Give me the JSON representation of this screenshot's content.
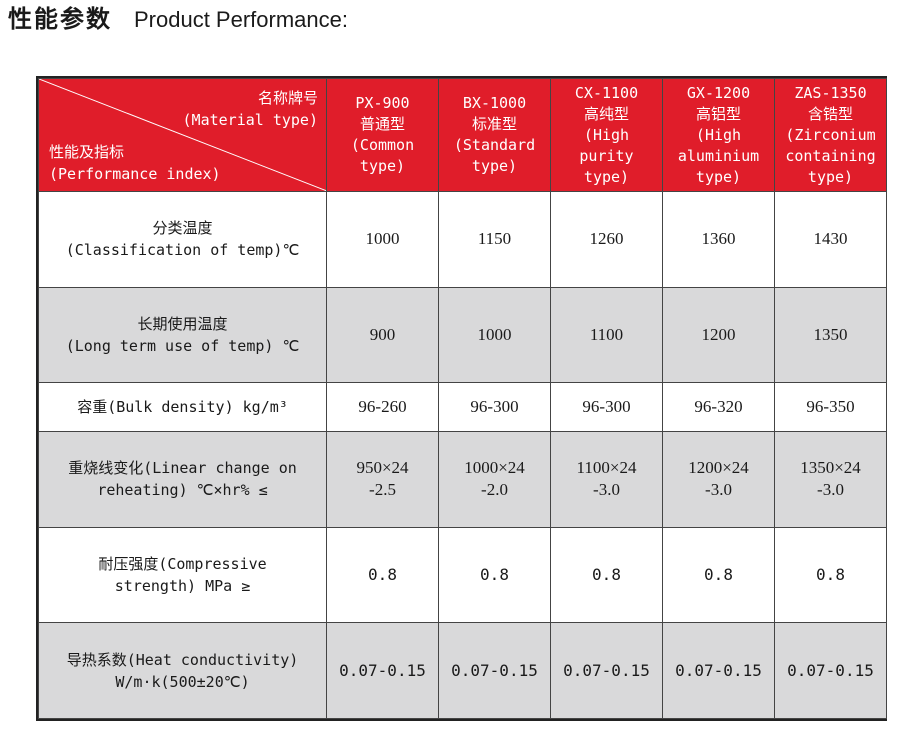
{
  "page_title": {
    "zh": "性能参数",
    "en": "Product Performance:"
  },
  "table": {
    "corner": {
      "top_right": [
        "名称牌号",
        "(Material type)"
      ],
      "bottom_left": [
        "性能及指标",
        "(Performance index)"
      ]
    },
    "columns": [
      {
        "lines": [
          "PX-900",
          "普通型",
          "(Common",
          "type)"
        ]
      },
      {
        "lines": [
          "BX-1000",
          "标准型",
          "(Standard",
          "type)"
        ]
      },
      {
        "lines": [
          "CX-1100",
          "高纯型",
          "(High",
          "purity",
          "type)"
        ]
      },
      {
        "lines": [
          "GX-1200",
          "高铝型",
          "(High",
          "aluminium",
          "type)"
        ]
      },
      {
        "lines": [
          "ZAS-1350",
          "含锆型",
          "(Zirconium",
          "containing",
          "type)"
        ]
      }
    ],
    "rows": [
      {
        "label": [
          "分类温度",
          "(Classification of temp)℃"
        ],
        "values": [
          [
            "1000"
          ],
          [
            "1150"
          ],
          [
            "1260"
          ],
          [
            "1360"
          ],
          [
            "1430"
          ]
        ]
      },
      {
        "label": [
          "长期使用温度",
          "(Long term use of temp) ℃"
        ],
        "values": [
          [
            "900"
          ],
          [
            "1000"
          ],
          [
            "1100"
          ],
          [
            "1200"
          ],
          [
            "1350"
          ]
        ]
      },
      {
        "label": [
          "容重(Bulk density) kg/m³"
        ],
        "values": [
          [
            "96-260"
          ],
          [
            "96-300"
          ],
          [
            "96-300"
          ],
          [
            "96-320"
          ],
          [
            "96-350"
          ]
        ]
      },
      {
        "label": [
          "重烧线变化(Linear change on",
          "reheating) ℃×hr% ≤"
        ],
        "values": [
          [
            "950×24",
            "-2.5"
          ],
          [
            "1000×24",
            "-2.0"
          ],
          [
            "1100×24",
            "-3.0"
          ],
          [
            "1200×24",
            "-3.0"
          ],
          [
            "1350×24",
            "-3.0"
          ]
        ]
      },
      {
        "label": [
          "耐压强度(Compressive",
          "strength) MPa ≥"
        ],
        "values": [
          [
            "0.8"
          ],
          [
            "0.8"
          ],
          [
            "0.8"
          ],
          [
            "0.8"
          ],
          [
            "0.8"
          ]
        ]
      },
      {
        "label": [
          "导热系数(Heat conductivity)",
          "W/m·k(500±20℃)"
        ],
        "values": [
          [
            "0.07-0.15"
          ],
          [
            "0.07-0.15"
          ],
          [
            "0.07-0.15"
          ],
          [
            "0.07-0.15"
          ],
          [
            "0.07-0.15"
          ]
        ]
      }
    ]
  },
  "colors": {
    "header_red": "#e01d2a",
    "row_grey": "#d9d9da",
    "row_white": "#ffffff"
  }
}
